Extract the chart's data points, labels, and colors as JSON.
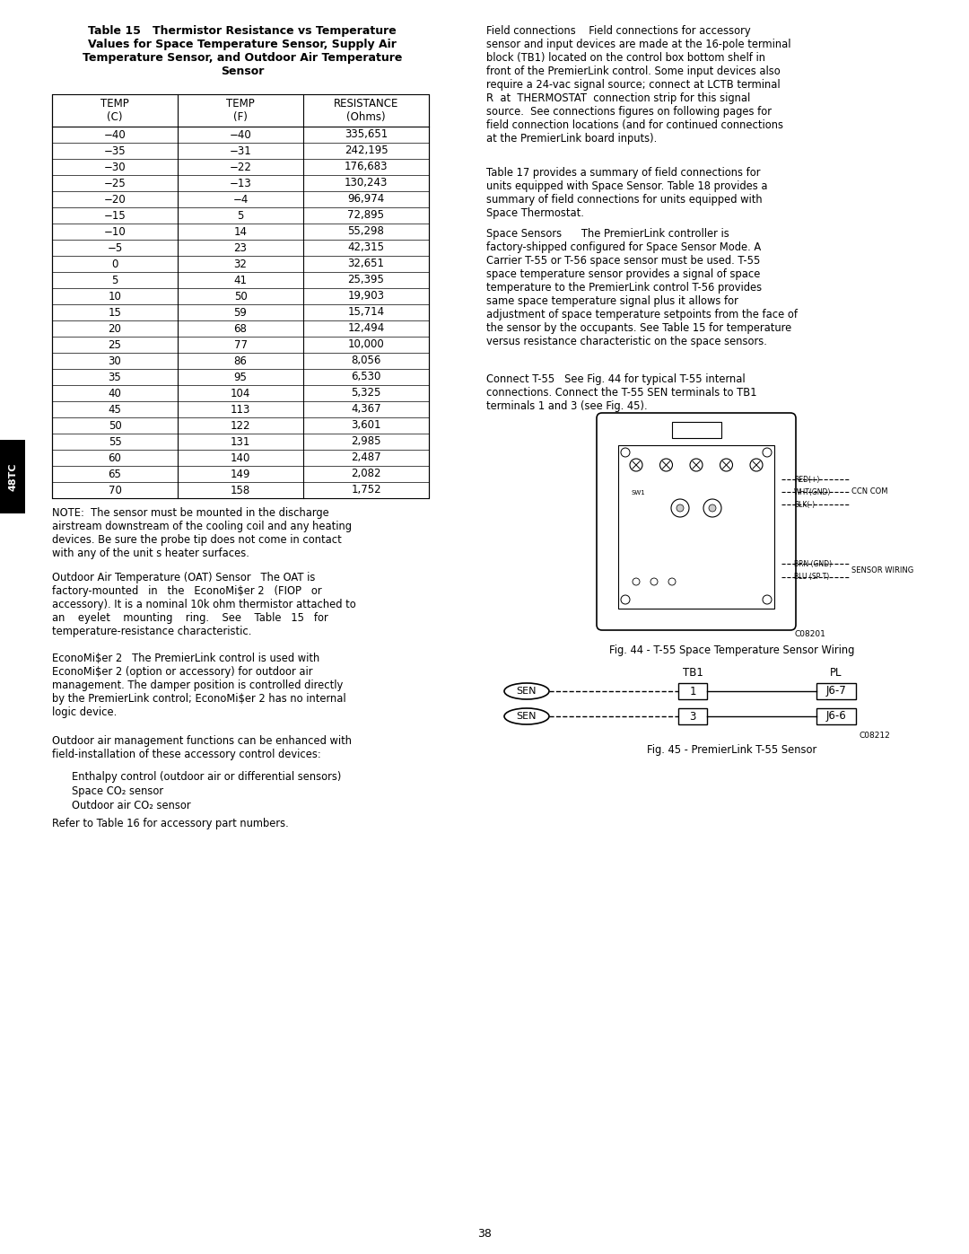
{
  "title": "Table 15   Thermistor Resistance vs Temperature\nValues for Space Temperature Sensor, Supply Air\nTemperature Sensor, and Outdoor Air Temperature\nSensor",
  "table_headers": [
    "TEMP\n(C)",
    "TEMP\n(F)",
    "RESISTANCE\n(Ohms)"
  ],
  "table_data": [
    [
      "−40",
      "−40",
      "335,651"
    ],
    [
      "−35",
      "−31",
      "242,195"
    ],
    [
      "−30",
      "−22",
      "176,683"
    ],
    [
      "−25",
      "−13",
      "130,243"
    ],
    [
      "−20",
      "−4",
      "96,974"
    ],
    [
      "−15",
      "5",
      "72,895"
    ],
    [
      "−10",
      "14",
      "55,298"
    ],
    [
      "−5",
      "23",
      "42,315"
    ],
    [
      "0",
      "32",
      "32,651"
    ],
    [
      "5",
      "41",
      "25,395"
    ],
    [
      "10",
      "50",
      "19,903"
    ],
    [
      "15",
      "59",
      "15,714"
    ],
    [
      "20",
      "68",
      "12,494"
    ],
    [
      "25",
      "77",
      "10,000"
    ],
    [
      "30",
      "86",
      "8,056"
    ],
    [
      "35",
      "95",
      "6,530"
    ],
    [
      "40",
      "104",
      "5,325"
    ],
    [
      "45",
      "113",
      "4,367"
    ],
    [
      "50",
      "122",
      "3,601"
    ],
    [
      "55",
      "131",
      "2,985"
    ],
    [
      "60",
      "140",
      "2,487"
    ],
    [
      "65",
      "149",
      "2,082"
    ],
    [
      "70",
      "158",
      "1,752"
    ]
  ],
  "note_text": "NOTE:  The sensor must be mounted in the discharge\nairstream downstream of the cooling coil and any heating\ndevices. Be sure the probe tip does not come in contact\nwith any of the unit s heater surfaces.",
  "oat_text": "Outdoor Air Temperature (OAT) Sensor   The OAT is\nfactory-mounted   in   the   EconoMi$er 2   (FIOP   or\naccessory). It is a nominal 10k ohm thermistor attached to\nan    eyelet    mounting    ring.    See    Table   15   for\ntemperature-resistance characteristic.",
  "econo_text": "EconoMi$er 2   The PremierLink control is used with\nEconoMi$er 2 (option or accessory) for outdoor air\nmanagement. The damper position is controlled directly\nby the PremierLink control; EconoMi$er 2 has no internal\nlogic device.",
  "outdoor_text": "Outdoor air management functions can be enhanced with\nfield-installation of these accessory control devices:",
  "bullet_items": [
    "Enthalpy control (outdoor air or differential sensors)",
    "Space CO₂ sensor",
    "Outdoor air CO₂ sensor"
  ],
  "refer_text": "Refer to Table 16 for accessory part numbers.",
  "right_col_para1": "Field connections    Field connections for accessory\nsensor and input devices are made at the 16-pole terminal\nblock (TB1) located on the control box bottom shelf in\nfront of the PremierLink control. Some input devices also\nrequire a 24-vac signal source; connect at LCTB terminal\nR  at  THERMOSTAT  connection strip for this signal\nsource.  See connections figures on following pages for\nfield connection locations (and for continued connections\nat the PremierLink board inputs).",
  "right_col_para2": "Table 17 provides a summary of field connections for\nunits equipped with Space Sensor. Table 18 provides a\nsummary of field connections for units equipped with\nSpace Thermostat.",
  "right_col_para3": "Space Sensors      The PremierLink controller is\nfactory-shipped configured for Space Sensor Mode. A\nCarrier T-55 or T-56 space sensor must be used. T-55\nspace temperature sensor provides a signal of space\ntemperature to the PremierLink control T-56 provides\nsame space temperature signal plus it allows for\nadjustment of space temperature setpoints from the face of\nthe sensor by the occupants. See Table 15 for temperature\nversus resistance characteristic on the space sensors.",
  "right_col_para4": "Connect T-55   See Fig. 44 for typical T-55 internal\nconnections. Connect the T-55 SEN terminals to TB1\nterminals 1 and 3 (see Fig. 45).",
  "fig44_caption": "Fig. 44 - T-55 Space Temperature Sensor Wiring",
  "fig44_code": "C08201",
  "fig45_caption": "Fig. 45 - PremierLink T-55 Sensor",
  "fig45_code": "C08212",
  "page_number": "38",
  "sidebar_text": "48TC",
  "bg_color": "#ffffff",
  "text_color": "#000000"
}
